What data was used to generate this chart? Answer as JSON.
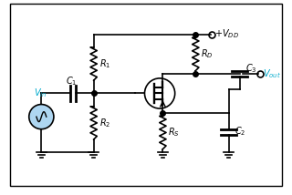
{
  "title": "",
  "bg_color": "#ffffff",
  "border_color": "#000000",
  "line_color": "#000000",
  "component_color": "#000000",
  "label_color": "#000000",
  "vin_circle_color": "#aed6f1",
  "cyan_label_color": "#00aacc",
  "vdd_label": "+V_{DD}",
  "vout_label": "V_{out}",
  "vin_label": "V_{in}",
  "r1_label": "R_1",
  "r2_label": "R_2",
  "rd_label": "R_D",
  "rs_label": "R_S",
  "c1_label": "C_1",
  "c2_label": "C_2",
  "c3_label": "C_3",
  "figsize": [
    3.2,
    2.14
  ],
  "dpi": 100
}
